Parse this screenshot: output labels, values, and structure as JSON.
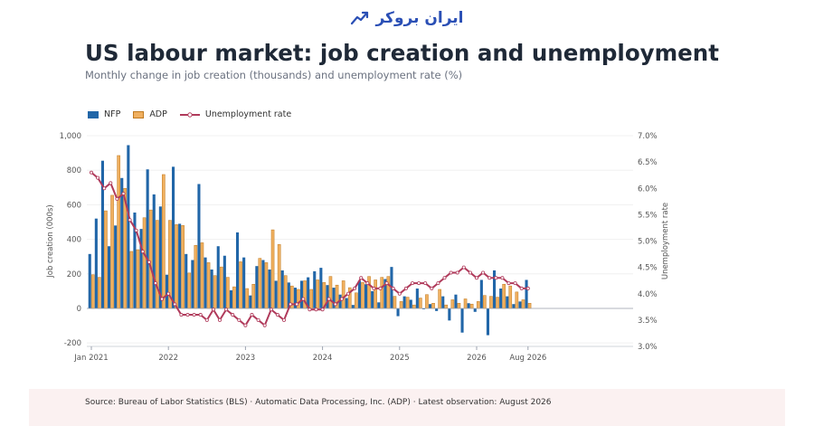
{
  "header": {
    "logo_text": "ایران بروکر",
    "title": "US labour market: job creation and unemployment",
    "subtitle": "Monthly change in job creation (thousands) and unemployment rate (%)"
  },
  "legend": {
    "nfp": "NFP",
    "adp": "ADP",
    "unemployment": "Unemployment rate"
  },
  "footer": {
    "source": "Source: Bureau of Labor Statistics (BLS)  ·  Automatic Data Processing, Inc. (ADP)  ·  Latest observation: August 2026"
  },
  "colors": {
    "nfp": "#2166a8",
    "adp": "#f0b060",
    "adp_edge": "#c07a20",
    "unemployment": "#b03a5b",
    "brand": "#2a4fb5"
  },
  "chart_data": {
    "type": "bar",
    "start": "Jan 2021",
    "frequency": "monthly",
    "x_ticks": [
      "Jan 2021",
      "2022",
      "2023",
      "2024",
      "2025",
      "2026",
      "Aug 2026"
    ],
    "ylabel": "Job creation (000s)",
    "y2label": "Unemployment rate",
    "ylim": [
      -220,
      1000
    ],
    "y_ticks": [
      -200,
      0,
      200,
      400,
      600,
      800,
      1000
    ],
    "y_tick_labels": [
      "-200",
      "0",
      "200",
      "400",
      "600",
      "800",
      "1,000"
    ],
    "y2lim": [
      3.0,
      7.0
    ],
    "y2_ticks": [
      3.0,
      3.5,
      4.0,
      4.5,
      5.0,
      5.5,
      6.0,
      6.5,
      7.0
    ],
    "y2_tick_labels": [
      "3.0%",
      "3.5%",
      "4.0%",
      "4.5%",
      "5.0%",
      "5.5%",
      "6.0%",
      "6.5%",
      "7.0%"
    ],
    "grid": true,
    "legend_position": "top-left",
    "series": [
      {
        "name": "NFP",
        "type": "bar",
        "values": [
          315,
          520,
          855,
          360,
          480,
          755,
          945,
          555,
          460,
          805,
          660,
          590,
          195,
          820,
          490,
          315,
          280,
          720,
          295,
          225,
          360,
          305,
          105,
          440,
          295,
          75,
          245,
          280,
          225,
          160,
          220,
          150,
          120,
          160,
          180,
          215,
          235,
          135,
          120,
          80,
          60,
          20,
          160,
          140,
          100,
          35,
          170,
          240,
          -45,
          70,
          50,
          115,
          -5,
          25,
          -15,
          70,
          -70,
          80,
          -140,
          30,
          -20,
          165,
          -155,
          220,
          115,
          70,
          25,
          40,
          165
        ]
      },
      {
        "name": "ADP",
        "type": "bar",
        "values": [
          195,
          180,
          565,
          655,
          885,
          695,
          330,
          340,
          525,
          570,
          510,
          775,
          510,
          485,
          480,
          205,
          365,
          380,
          265,
          190,
          240,
          180,
          125,
          270,
          115,
          140,
          290,
          265,
          455,
          370,
          190,
          130,
          110,
          160,
          110,
          165,
          150,
          185,
          135,
          160,
          120,
          90,
          150,
          185,
          165,
          180,
          185,
          70,
          40,
          65,
          20,
          60,
          80,
          30,
          110,
          20,
          50,
          30,
          55,
          25,
          40,
          75,
          70,
          65,
          140,
          130,
          95,
          50,
          30
        ]
      },
      {
        "name": "Unemployment rate",
        "type": "line",
        "axis": "right",
        "values": [
          6.3,
          6.2,
          6.0,
          6.1,
          5.8,
          5.9,
          5.4,
          5.2,
          4.8,
          4.6,
          4.2,
          3.9,
          4.0,
          3.8,
          3.6,
          3.6,
          3.6,
          3.6,
          3.5,
          3.7,
          3.5,
          3.7,
          3.6,
          3.5,
          3.4,
          3.6,
          3.5,
          3.4,
          3.7,
          3.6,
          3.5,
          3.8,
          3.8,
          3.9,
          3.7,
          3.7,
          3.7,
          3.9,
          3.8,
          3.9,
          4.0,
          4.1,
          4.3,
          4.2,
          4.1,
          4.1,
          4.2,
          4.1,
          4.0,
          4.1,
          4.2,
          4.2,
          4.2,
          4.1,
          4.2,
          4.3,
          4.4,
          4.4,
          4.5,
          4.4,
          4.3,
          4.4,
          4.3,
          4.3,
          4.3,
          4.2,
          4.2,
          4.1,
          4.1
        ]
      }
    ]
  }
}
